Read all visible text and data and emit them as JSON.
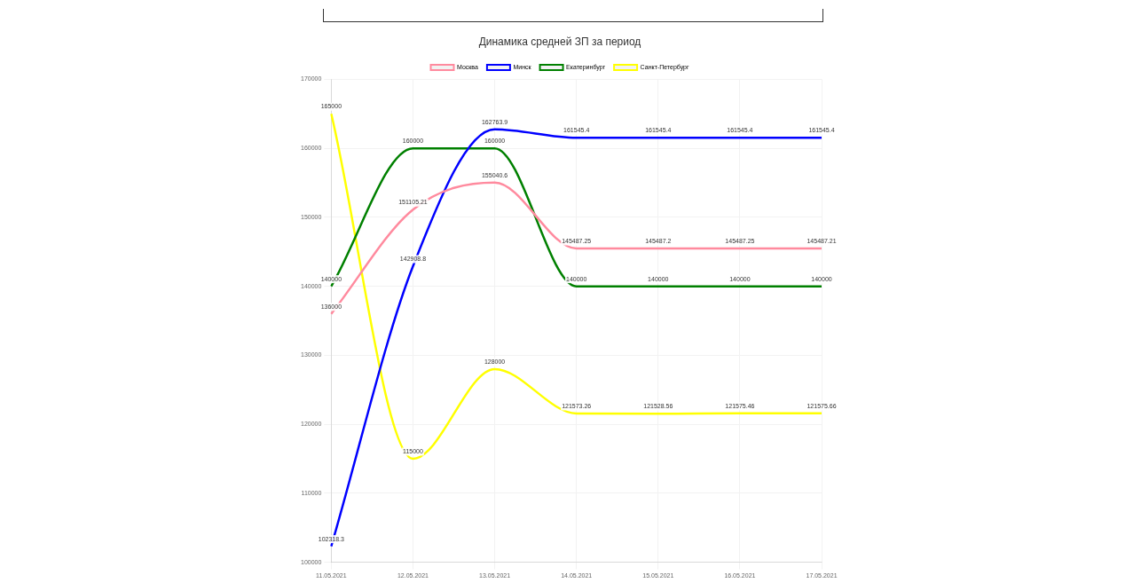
{
  "chart_data": {
    "type": "line",
    "title": "Динамика средней ЗП за период",
    "categories": [
      "11.05.2021",
      "12.05.2021",
      "13.05.2021",
      "14.05.2021",
      "15.05.2021",
      "16.05.2021",
      "17.05.2021"
    ],
    "series": [
      {
        "name": "Москва",
        "color": "#ff8a9e",
        "values": [
          136000,
          151105.21,
          155040.6,
          145487.25,
          145487.2,
          145487.25,
          145487.21
        ]
      },
      {
        "name": "Минск",
        "color": "#0000ff",
        "values": [
          102318.3,
          142908.8,
          162763.9,
          161545.4,
          161545.4,
          161545.4,
          161545.4
        ]
      },
      {
        "name": "Екатеринбург",
        "color": "#008000",
        "values": [
          140000,
          160000,
          160000,
          140000,
          140000,
          140000,
          140000
        ]
      },
      {
        "name": "Санкт-Петербург",
        "color": "#ffff00",
        "values": [
          165000,
          115000,
          128000,
          121573.26,
          121528.56,
          121575.46,
          121575.66
        ]
      }
    ],
    "ylim": [
      100000,
      170000
    ],
    "yticks": [
      100000,
      110000,
      120000,
      130000,
      140000,
      150000,
      160000,
      170000
    ],
    "grid": true,
    "legend": "top",
    "data_labels": true,
    "marker": "none",
    "line_style": "solid"
  }
}
